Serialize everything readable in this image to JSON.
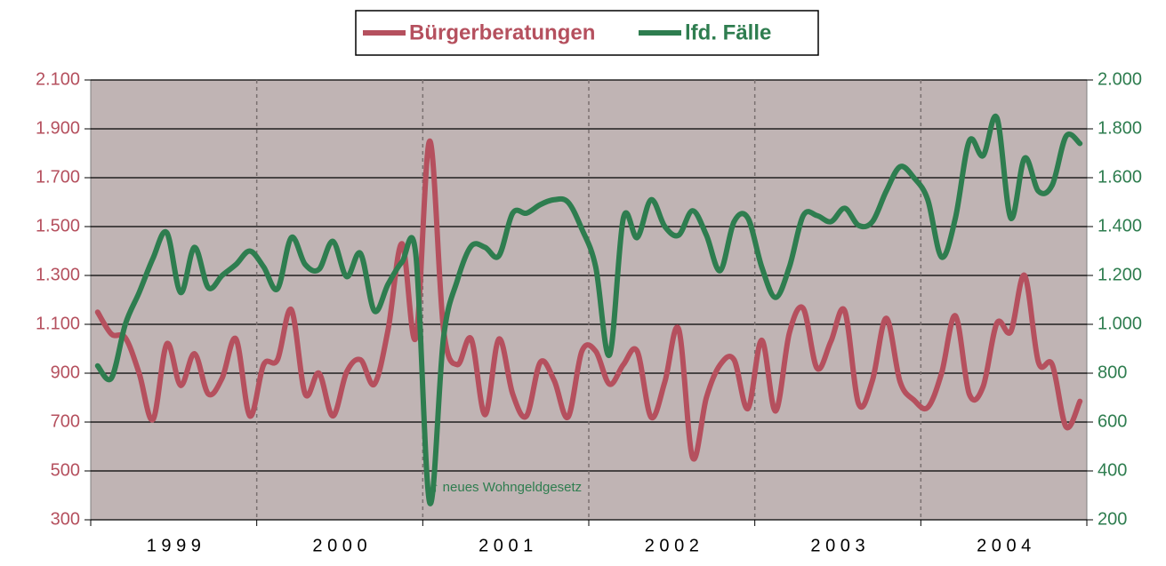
{
  "chart_data": {
    "type": "line",
    "categories": [
      "1 9 9 9",
      null,
      null,
      null,
      null,
      null,
      null,
      null,
      null,
      null,
      null,
      null,
      "2 0 0 0",
      null,
      null,
      null,
      null,
      null,
      null,
      null,
      null,
      null,
      null,
      null,
      "2 0 0 1",
      null,
      null,
      null,
      null,
      null,
      null,
      null,
      null,
      null,
      null,
      null,
      "2 0 0 2",
      null,
      null,
      null,
      null,
      null,
      null,
      null,
      null,
      null,
      null,
      null,
      "2 0 0 3",
      null,
      null,
      null,
      null,
      null,
      null,
      null,
      null,
      null,
      null,
      null,
      "2 0 0 4",
      null,
      null,
      null,
      null,
      null,
      null,
      null,
      null,
      null,
      null,
      null
    ],
    "series": [
      {
        "name": "Bürgerberatungen",
        "color": "#b5505e",
        "values": [
          1150,
          1060,
          1045,
          900,
          710,
          1020,
          850,
          980,
          815,
          880,
          1040,
          725,
          935,
          955,
          1160,
          815,
          900,
          725,
          905,
          955,
          855,
          1080,
          1430,
          1045,
          1850,
          1080,
          935,
          1040,
          730,
          1040,
          815,
          725,
          945,
          870,
          720,
          990,
          990,
          855,
          935,
          990,
          720,
          865,
          1080,
          555,
          800,
          935,
          955,
          755,
          1035,
          745,
          1065,
          1165,
          920,
          1030,
          1155,
          775,
          870,
          1125,
          865,
          790,
          760,
          900,
          1135,
          815,
          845,
          1105,
          1070,
          1300,
          945,
          935,
          680,
          785
        ]
      },
      {
        "name": "lfd. Fälle",
        "color": "#2e7d4f",
        "axis": "y2",
        "values": [
          830,
          780,
          1000,
          1130,
          1270,
          1375,
          1130,
          1315,
          1150,
          1200,
          1245,
          1300,
          1235,
          1145,
          1355,
          1245,
          1225,
          1340,
          1195,
          1290,
          1055,
          1165,
          1255,
          1285,
          270,
          945,
          1180,
          1320,
          1315,
          1280,
          1455,
          1455,
          1490,
          1510,
          1500,
          1390,
          1235,
          875,
          1435,
          1355,
          1510,
          1400,
          1365,
          1465,
          1365,
          1220,
          1420,
          1435,
          1235,
          1110,
          1235,
          1445,
          1445,
          1420,
          1475,
          1405,
          1420,
          1545,
          1645,
          1600,
          1510,
          1275,
          1435,
          1750,
          1690,
          1845,
          1435,
          1680,
          1545,
          1570,
          1770,
          1740
        ]
      }
    ],
    "ylim": [
      300,
      2100
    ],
    "yticks": [
      300,
      500,
      700,
      900,
      {
        "value": 1100,
        "label": "1.100"
      },
      {
        "value": 1300,
        "label": "1.300"
      },
      {
        "value": 1500,
        "label": "1.500"
      },
      {
        "value": 1700,
        "label": "1.700"
      },
      {
        "value": 1900,
        "label": "1.900"
      },
      {
        "value": 2100,
        "label": "2.100"
      }
    ],
    "y2lim": [
      200,
      2000
    ],
    "y2ticks": [
      200,
      400,
      600,
      800,
      {
        "value": 1000,
        "label": "1.000"
      },
      {
        "value": 1200,
        "label": "1.200"
      },
      {
        "value": 1400,
        "label": "1.400"
      },
      {
        "value": 1600,
        "label": "1.600"
      },
      {
        "value": 1800,
        "label": "1.800"
      },
      {
        "value": 2000,
        "label": "2.000"
      }
    ],
    "annotation": "↑ neues Wohngeldgesetz",
    "grid": true,
    "legend": "top",
    "plot_background": "#c0b4b4"
  }
}
